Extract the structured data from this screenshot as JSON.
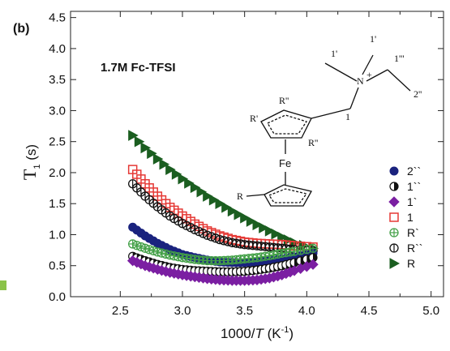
{
  "chart_data": {
    "type": "scatter",
    "panel_label": "(b)",
    "annotation": "1.7M Fc-TFSI",
    "xlabel_parts": {
      "pre": "1000/",
      "italic": "T",
      "post": " (K",
      "sup": "-1",
      "end": ")"
    },
    "ylabel": {
      "main": "T",
      "sub": "1",
      "unit": " (s)"
    },
    "xlim": [
      2.1,
      5.1
    ],
    "ylim": [
      0.0,
      4.6
    ],
    "xticks": [
      2.5,
      3.0,
      3.5,
      4.0,
      4.5,
      5.0
    ],
    "xtick_labels": [
      "2.5",
      "3.0",
      "3.5",
      "4.0",
      "4.5",
      "5.0"
    ],
    "yticks": [
      0.0,
      0.5,
      1.0,
      1.5,
      2.0,
      2.5,
      3.0,
      3.5,
      4.0,
      4.5
    ],
    "ytick_labels": [
      "0.0",
      "0.5",
      "1.0",
      "1.5",
      "2.0",
      "2.5",
      "3.0",
      "3.5",
      "4.0",
      "4.5"
    ],
    "legend_position": "right",
    "x": [
      2.6,
      2.7,
      2.8,
      2.9,
      3.0,
      3.1,
      3.2,
      3.3,
      3.4,
      3.5,
      3.6,
      3.7,
      3.8,
      3.9,
      4.05
    ],
    "series": [
      {
        "name": "2''",
        "label": "2``",
        "marker": "circle",
        "color": "#1a237e",
        "fill": "solid",
        "values": [
          1.12,
          0.98,
          0.86,
          0.76,
          0.68,
          0.63,
          0.59,
          0.56,
          0.55,
          0.55,
          0.56,
          0.58,
          0.61,
          0.64,
          0.7
        ]
      },
      {
        "name": "1''",
        "label": "1``",
        "marker": "half-circle",
        "color": "#111111",
        "fill": "half",
        "values": [
          0.65,
          0.58,
          0.52,
          0.47,
          0.44,
          0.42,
          0.41,
          0.4,
          0.4,
          0.41,
          0.43,
          0.46,
          0.5,
          0.55,
          0.63
        ]
      },
      {
        "name": "1'",
        "label": "1`",
        "marker": "diamond",
        "color": "#7b1fa2",
        "fill": "solid",
        "values": [
          0.58,
          0.5,
          0.44,
          0.39,
          0.35,
          0.32,
          0.29,
          0.27,
          0.26,
          0.26,
          0.27,
          0.3,
          0.35,
          0.42,
          0.52
        ]
      },
      {
        "name": "1",
        "label": "1",
        "marker": "square",
        "color": "#e53935",
        "fill": "open",
        "values": [
          2.05,
          1.82,
          1.62,
          1.44,
          1.3,
          1.17,
          1.06,
          0.98,
          0.92,
          0.88,
          0.86,
          0.85,
          0.84,
          0.82,
          0.8
        ]
      },
      {
        "name": "R'",
        "label": "R`",
        "marker": "circle-plus",
        "color": "#43a047",
        "fill": "open",
        "values": [
          0.85,
          0.78,
          0.72,
          0.67,
          0.63,
          0.6,
          0.58,
          0.58,
          0.59,
          0.61,
          0.63,
          0.66,
          0.7,
          0.73,
          0.78
        ]
      },
      {
        "name": "R''",
        "label": "R``",
        "marker": "circle-bar",
        "color": "#111111",
        "fill": "open",
        "values": [
          1.82,
          1.62,
          1.45,
          1.3,
          1.18,
          1.08,
          0.99,
          0.92,
          0.87,
          0.84,
          0.82,
          0.8,
          0.78,
          0.76,
          0.74
        ]
      },
      {
        "name": "R",
        "label": "R",
        "marker": "triangle-right",
        "color": "#1b5e20",
        "fill": "solid",
        "values": [
          2.6,
          2.4,
          2.22,
          2.05,
          1.9,
          1.76,
          1.62,
          1.5,
          1.38,
          1.27,
          1.16,
          1.06,
          0.96,
          0.87,
          0.78
        ]
      }
    ]
  },
  "structure": {
    "labels": [
      "1'",
      "1'",
      "1'''",
      "N",
      "+",
      "2''",
      "R''",
      "R'",
      "R''",
      "1",
      "Fe",
      "R"
    ]
  }
}
